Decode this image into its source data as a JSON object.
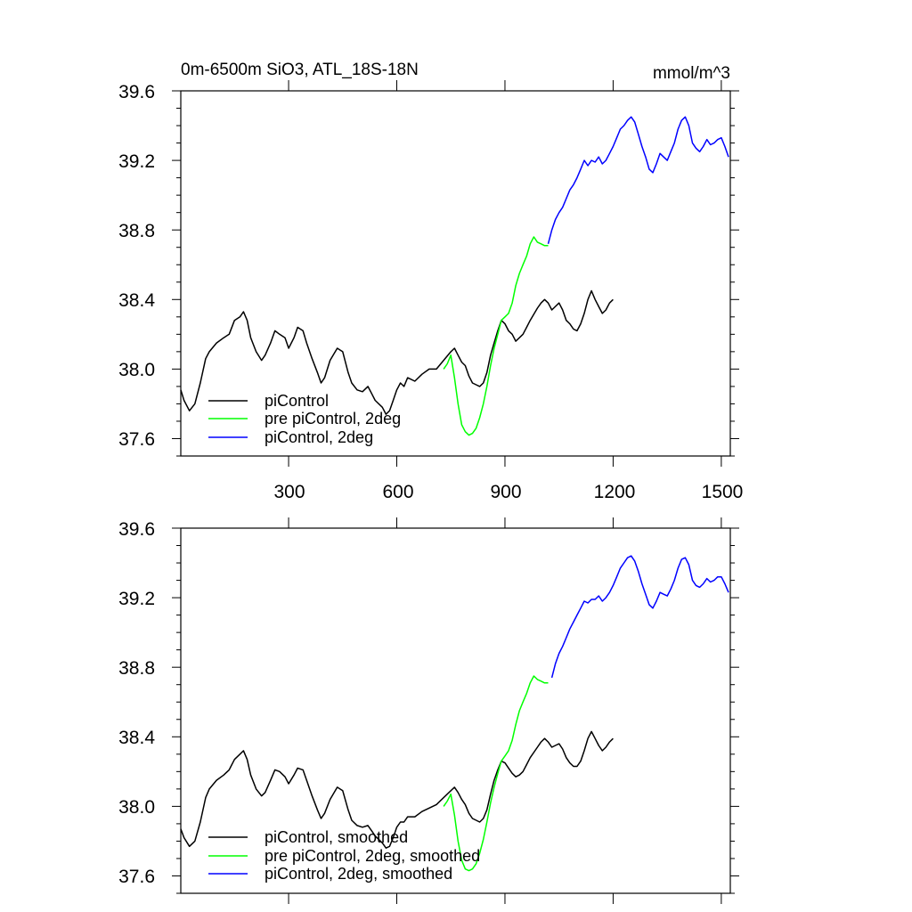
{
  "chart_data": [
    {
      "type": "line",
      "title_left": "0m-6500m SiO3, ATL_18S-18N",
      "title_right": "mmol/m^3",
      "xlim": [
        1,
        1525
      ],
      "ylim": [
        37.5,
        39.6
      ],
      "y_ticks": [
        "37.6",
        "38.0",
        "38.4",
        "38.8",
        "39.2",
        "39.6"
      ],
      "x_ticks": [
        "300",
        "600",
        "900",
        "1200",
        "1500"
      ],
      "series": [
        {
          "name": "piControl",
          "color": "#000000",
          "x": [
            1,
            10,
            25,
            40,
            55,
            70,
            80,
            100,
            120,
            135,
            150,
            165,
            175,
            185,
            195,
            210,
            225,
            235,
            250,
            262,
            275,
            290,
            300,
            315,
            325,
            340,
            350,
            365,
            380,
            390,
            400,
            415,
            435,
            450,
            465,
            475,
            490,
            505,
            520,
            530,
            540,
            560,
            570,
            580,
            590,
            600,
            610,
            620,
            630,
            650,
            670,
            690,
            710,
            730,
            750,
            760,
            770,
            780,
            790,
            800,
            810,
            820,
            830,
            840,
            850,
            860,
            870,
            880,
            890,
            900,
            910,
            920,
            930,
            940,
            950,
            960,
            970,
            990,
            1000,
            1010,
            1020,
            1030,
            1040,
            1050,
            1060,
            1070,
            1080,
            1090,
            1100,
            1110,
            1120,
            1130,
            1140,
            1150,
            1160,
            1170,
            1180,
            1190,
            1200
          ],
          "values": [
            37.88,
            37.82,
            37.76,
            37.8,
            37.92,
            38.06,
            38.1,
            38.15,
            38.18,
            38.2,
            38.28,
            38.3,
            38.33,
            38.28,
            38.18,
            38.1,
            38.05,
            38.08,
            38.15,
            38.22,
            38.2,
            38.18,
            38.12,
            38.18,
            38.24,
            38.22,
            38.15,
            38.06,
            37.98,
            37.92,
            37.95,
            38.05,
            38.12,
            38.1,
            37.98,
            37.92,
            37.88,
            37.87,
            37.9,
            37.86,
            37.82,
            37.78,
            37.74,
            37.76,
            37.82,
            37.88,
            37.92,
            37.9,
            37.95,
            37.93,
            37.97,
            38.0,
            38.0,
            38.05,
            38.1,
            38.12,
            38.08,
            38.04,
            38.02,
            37.96,
            37.92,
            37.91,
            37.9,
            37.92,
            37.98,
            38.08,
            38.15,
            38.22,
            38.28,
            38.26,
            38.22,
            38.2,
            38.16,
            38.18,
            38.2,
            38.24,
            38.28,
            38.35,
            38.38,
            38.4,
            38.38,
            38.34,
            38.36,
            38.38,
            38.34,
            38.28,
            38.26,
            38.23,
            38.22,
            38.26,
            38.32,
            38.4,
            38.45,
            38.4,
            38.36,
            38.32,
            38.34,
            38.38,
            38.4
          ]
        },
        {
          "name": "pre piControl, 2deg",
          "color": "#00ff00",
          "x": [
            730,
            740,
            750,
            760,
            770,
            780,
            790,
            800,
            810,
            820,
            830,
            840,
            850,
            860,
            870,
            880,
            890,
            900,
            910,
            920,
            930,
            940,
            950,
            960,
            970,
            980,
            990,
            1000,
            1010,
            1020
          ],
          "values": [
            38.0,
            38.03,
            38.08,
            37.95,
            37.8,
            37.68,
            37.64,
            37.62,
            37.63,
            37.66,
            37.72,
            37.8,
            37.9,
            38.02,
            38.12,
            38.2,
            38.28,
            38.3,
            38.32,
            38.38,
            38.48,
            38.55,
            38.6,
            38.65,
            38.72,
            38.76,
            38.73,
            38.72,
            38.71,
            38.71
          ]
        },
        {
          "name": "piControl, 2deg",
          "color": "#0000ff",
          "x": [
            1020,
            1030,
            1040,
            1050,
            1060,
            1070,
            1080,
            1090,
            1100,
            1110,
            1120,
            1130,
            1140,
            1150,
            1160,
            1170,
            1180,
            1190,
            1200,
            1210,
            1220,
            1230,
            1240,
            1250,
            1260,
            1270,
            1280,
            1290,
            1300,
            1310,
            1320,
            1330,
            1340,
            1350,
            1360,
            1370,
            1380,
            1390,
            1400,
            1410,
            1420,
            1430,
            1440,
            1450,
            1460,
            1470,
            1480,
            1490,
            1500,
            1510,
            1520
          ],
          "values": [
            38.72,
            38.8,
            38.86,
            38.9,
            38.93,
            38.98,
            39.03,
            39.06,
            39.1,
            39.15,
            39.2,
            39.17,
            39.2,
            39.19,
            39.22,
            39.18,
            39.2,
            39.24,
            39.28,
            39.33,
            39.38,
            39.4,
            39.43,
            39.45,
            39.42,
            39.35,
            39.28,
            39.22,
            39.15,
            39.13,
            39.18,
            39.24,
            39.22,
            39.2,
            39.25,
            39.3,
            39.38,
            39.43,
            39.45,
            39.4,
            39.3,
            39.27,
            39.25,
            39.28,
            39.32,
            39.29,
            39.3,
            39.32,
            39.33,
            39.28,
            39.22
          ]
        }
      ]
    },
    {
      "type": "line",
      "xlim": [
        1,
        1525
      ],
      "ylim": [
        37.5,
        39.6
      ],
      "y_ticks": [
        "37.6",
        "38.0",
        "38.4",
        "38.8",
        "39.2",
        "39.6"
      ],
      "series": [
        {
          "name": "piControl, smoothed",
          "color": "#000000",
          "x": [
            1,
            10,
            25,
            40,
            55,
            70,
            80,
            100,
            120,
            135,
            150,
            165,
            175,
            185,
            195,
            210,
            225,
            235,
            250,
            262,
            275,
            290,
            300,
            315,
            325,
            340,
            350,
            365,
            380,
            390,
            400,
            415,
            435,
            450,
            465,
            475,
            490,
            505,
            520,
            530,
            540,
            560,
            570,
            580,
            590,
            600,
            610,
            620,
            630,
            650,
            670,
            690,
            710,
            730,
            750,
            760,
            770,
            780,
            790,
            800,
            810,
            820,
            830,
            840,
            850,
            860,
            870,
            880,
            890,
            900,
            910,
            920,
            930,
            940,
            950,
            960,
            970,
            990,
            1000,
            1010,
            1020,
            1030,
            1040,
            1050,
            1060,
            1070,
            1080,
            1090,
            1100,
            1110,
            1120,
            1130,
            1140,
            1150,
            1160,
            1170,
            1180,
            1190,
            1200
          ],
          "values": [
            37.87,
            37.82,
            37.77,
            37.8,
            37.91,
            38.05,
            38.1,
            38.15,
            38.18,
            38.21,
            38.27,
            38.3,
            38.32,
            38.27,
            38.18,
            38.1,
            38.06,
            38.08,
            38.15,
            38.21,
            38.2,
            38.17,
            38.13,
            38.18,
            38.22,
            38.21,
            38.15,
            38.06,
            37.98,
            37.93,
            37.96,
            38.04,
            38.11,
            38.09,
            37.98,
            37.92,
            37.89,
            37.88,
            37.89,
            37.86,
            37.83,
            37.79,
            37.76,
            37.77,
            37.82,
            37.88,
            37.91,
            37.91,
            37.94,
            37.94,
            37.97,
            37.99,
            38.01,
            38.05,
            38.09,
            38.11,
            38.08,
            38.04,
            38.01,
            37.96,
            37.93,
            37.92,
            37.91,
            37.93,
            37.98,
            38.07,
            38.15,
            38.21,
            38.26,
            38.25,
            38.22,
            38.19,
            38.17,
            38.18,
            38.2,
            38.24,
            38.28,
            38.34,
            38.37,
            38.39,
            38.37,
            38.34,
            38.35,
            38.36,
            38.33,
            38.28,
            38.25,
            38.23,
            38.23,
            38.26,
            38.32,
            38.39,
            38.43,
            38.39,
            38.35,
            38.32,
            38.34,
            38.37,
            38.39
          ]
        },
        {
          "name": "pre piControl, 2deg, smoothed",
          "color": "#00ff00",
          "x": [
            730,
            740,
            750,
            760,
            770,
            780,
            790,
            800,
            810,
            820,
            830,
            840,
            850,
            860,
            870,
            880,
            890,
            900,
            910,
            920,
            930,
            940,
            950,
            960,
            970,
            980,
            990,
            1000,
            1010,
            1020
          ],
          "values": [
            38.0,
            38.03,
            38.07,
            37.95,
            37.8,
            37.69,
            37.64,
            37.63,
            37.64,
            37.67,
            37.73,
            37.81,
            37.91,
            38.02,
            38.11,
            38.19,
            38.26,
            38.29,
            38.32,
            38.38,
            38.47,
            38.55,
            38.6,
            38.65,
            38.71,
            38.75,
            38.73,
            38.72,
            38.71,
            38.71
          ]
        },
        {
          "name": "piControl, 2deg, smoothed",
          "color": "#0000ff",
          "x": [
            1030,
            1040,
            1050,
            1060,
            1070,
            1080,
            1090,
            1100,
            1110,
            1120,
            1130,
            1140,
            1150,
            1160,
            1170,
            1180,
            1190,
            1200,
            1210,
            1220,
            1230,
            1240,
            1250,
            1260,
            1270,
            1280,
            1290,
            1300,
            1310,
            1320,
            1330,
            1340,
            1350,
            1360,
            1370,
            1380,
            1390,
            1400,
            1410,
            1420,
            1430,
            1440,
            1450,
            1460,
            1470,
            1480,
            1490,
            1500,
            1510,
            1520
          ],
          "values": [
            38.74,
            38.82,
            38.88,
            38.92,
            38.97,
            39.02,
            39.06,
            39.1,
            39.14,
            39.18,
            39.17,
            39.19,
            39.19,
            39.21,
            39.18,
            39.2,
            39.23,
            39.27,
            39.32,
            39.37,
            39.4,
            39.43,
            39.44,
            39.41,
            39.35,
            39.28,
            39.22,
            39.16,
            39.14,
            39.18,
            39.23,
            39.22,
            39.21,
            39.25,
            39.3,
            39.37,
            39.42,
            39.43,
            39.39,
            39.3,
            39.27,
            39.26,
            39.28,
            39.31,
            39.29,
            39.3,
            39.32,
            39.32,
            39.28,
            39.23
          ]
        }
      ]
    }
  ]
}
